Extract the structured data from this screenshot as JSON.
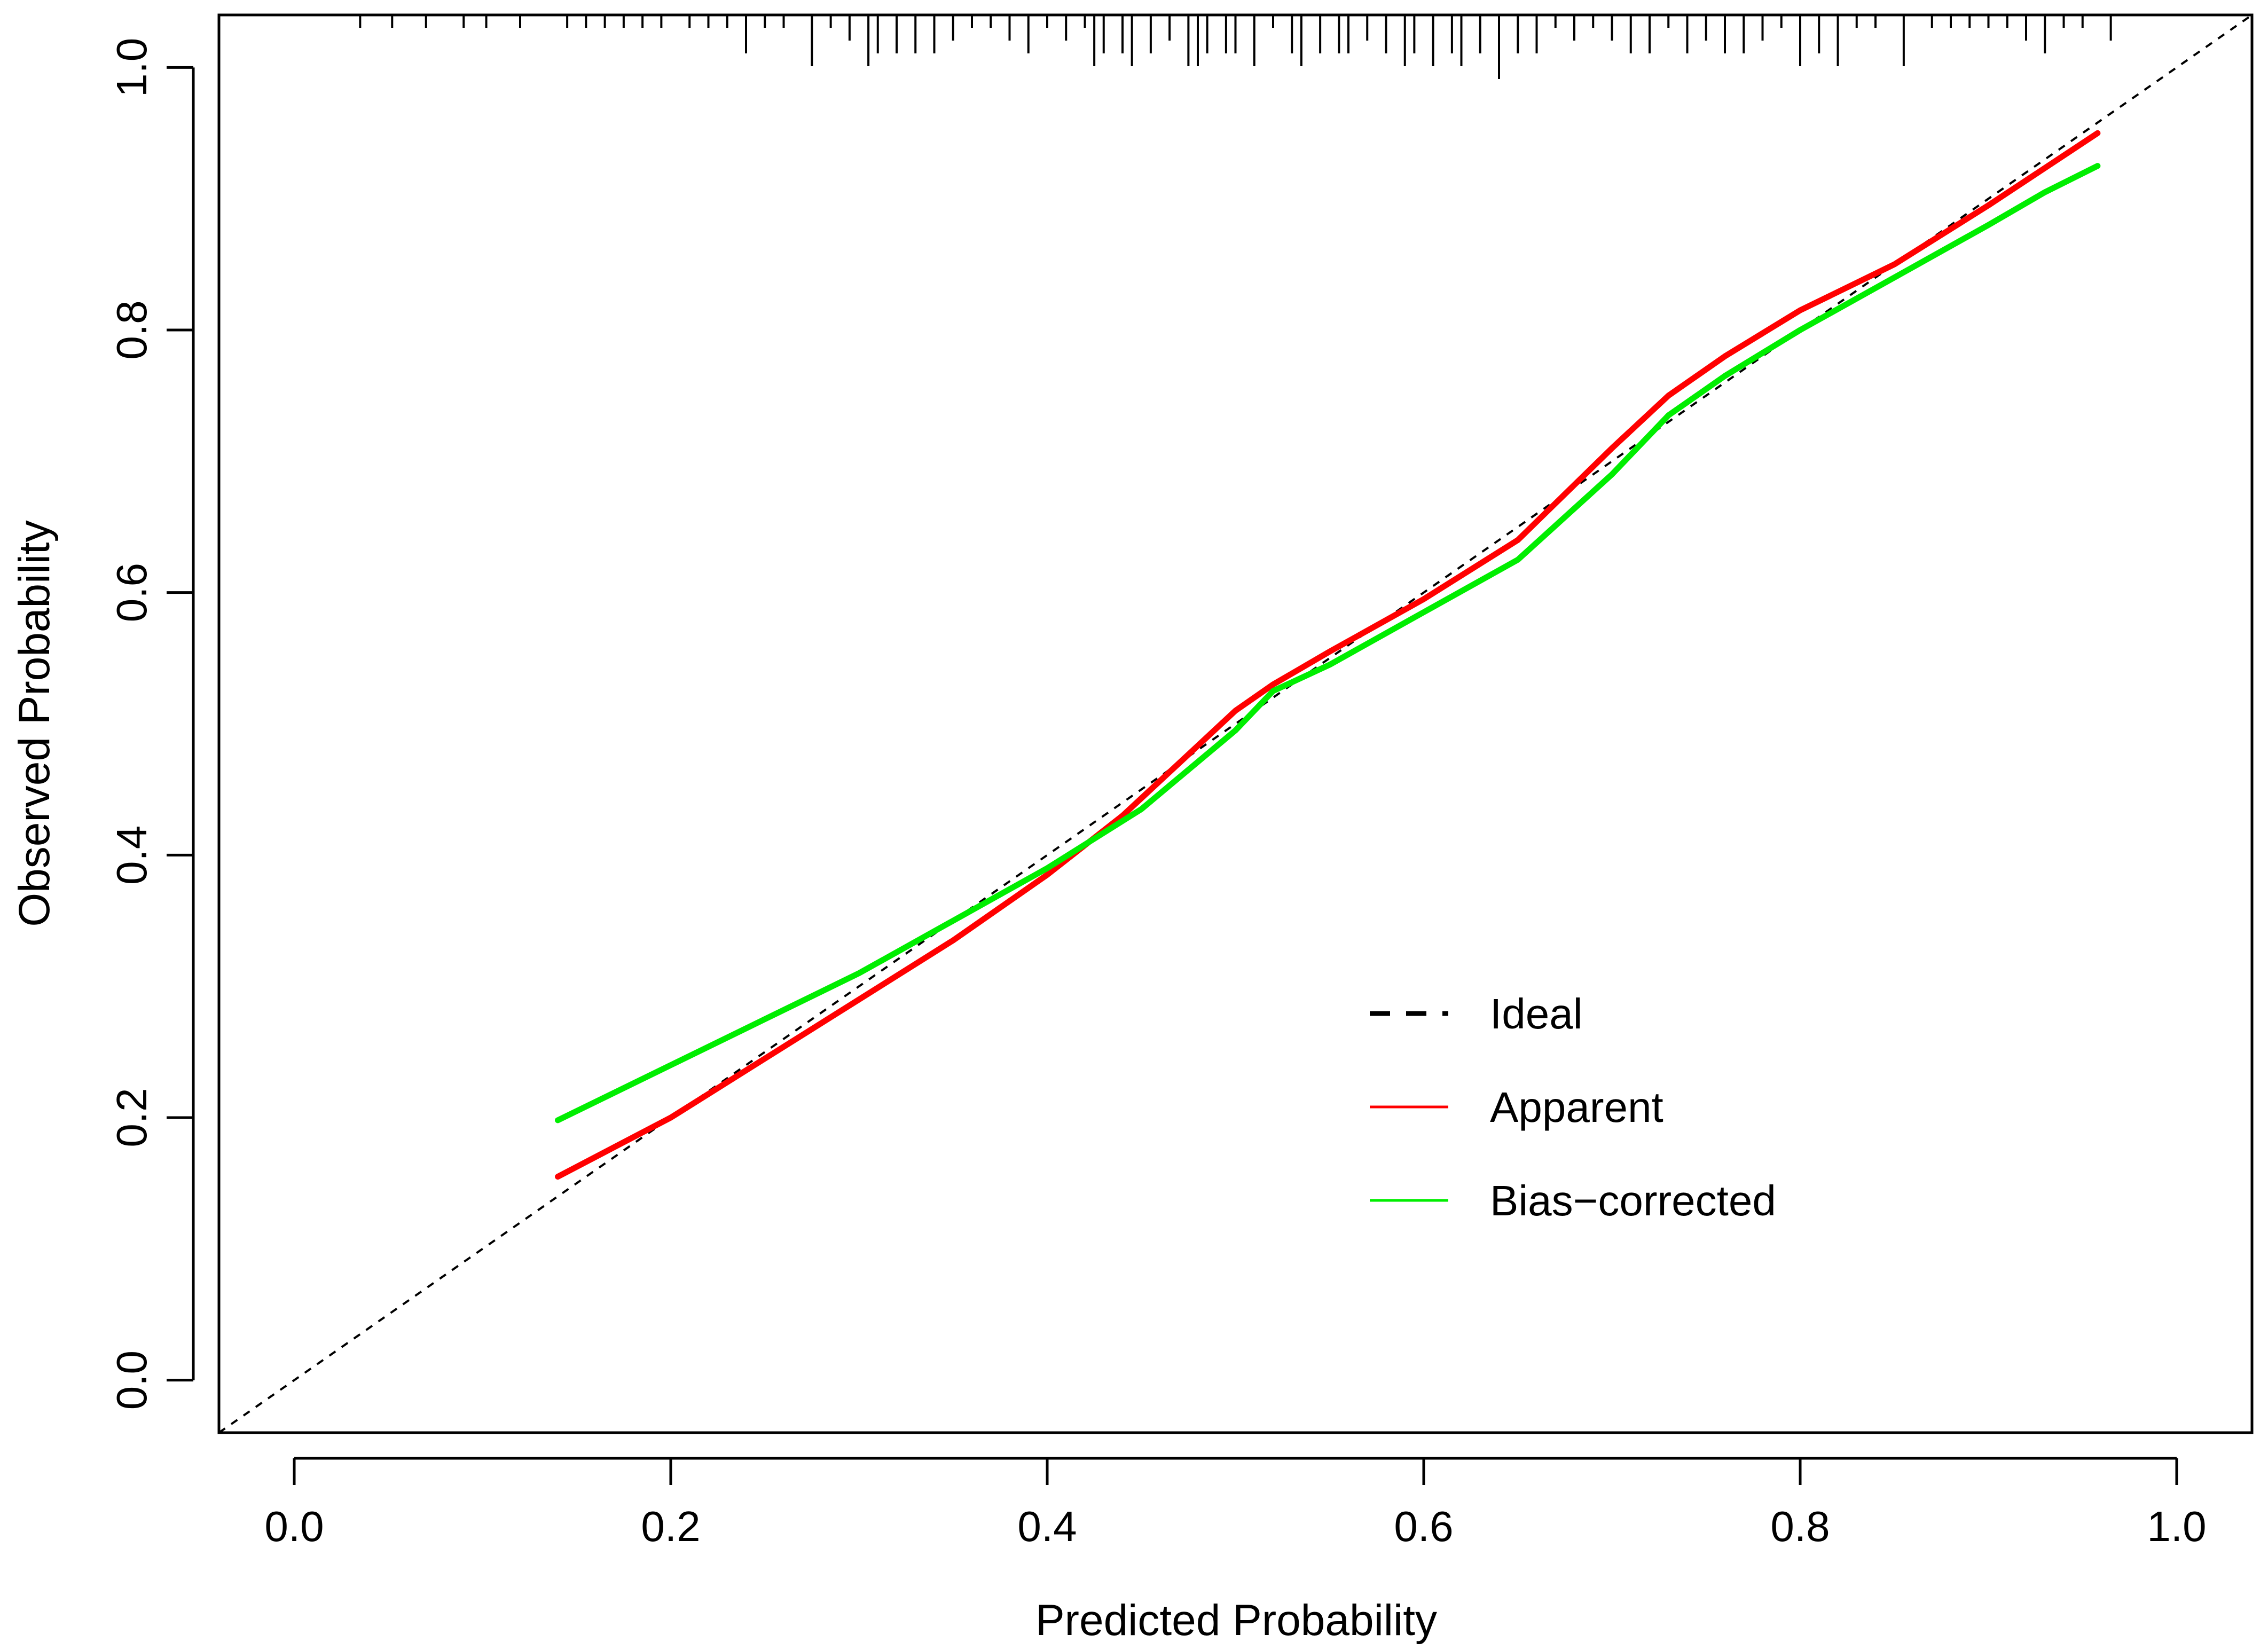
{
  "chart_data": {
    "type": "line",
    "xlabel": "Predicted Probability",
    "ylabel": "Observed Probability",
    "xlim": [
      -0.04,
      1.04
    ],
    "ylim": [
      -0.04,
      1.04
    ],
    "x_ticks": [
      0.0,
      0.2,
      0.4,
      0.6,
      0.8,
      1.0
    ],
    "y_ticks": [
      0.0,
      0.2,
      0.4,
      0.6,
      0.8,
      1.0
    ],
    "x_tick_labels": [
      "0.0",
      "0.2",
      "0.4",
      "0.6",
      "0.8",
      "1.0"
    ],
    "y_tick_labels": [
      "0.0",
      "0.2",
      "0.4",
      "0.6",
      "0.8",
      "1.0"
    ],
    "grid": false,
    "legend_placement": "bottom-right",
    "legend": [
      {
        "label": "Ideal",
        "series": "ideal"
      },
      {
        "label": "Apparent",
        "series": "apparent"
      },
      {
        "label": "Bias−corrected",
        "series": "bias_corrected"
      }
    ],
    "series": [
      {
        "key": "ideal",
        "name": "Ideal",
        "color": "#000000",
        "style": "dashed",
        "x": [
          -0.04,
          1.04
        ],
        "y": [
          -0.04,
          1.04
        ]
      },
      {
        "key": "apparent",
        "name": "Apparent",
        "color": "#ff0000",
        "style": "solid",
        "x": [
          0.14,
          0.2,
          0.25,
          0.3,
          0.35,
          0.4,
          0.44,
          0.47,
          0.5,
          0.52,
          0.55,
          0.6,
          0.65,
          0.7,
          0.73,
          0.76,
          0.8,
          0.85,
          0.9,
          0.958
        ],
        "y": [
          0.155,
          0.2,
          0.245,
          0.29,
          0.335,
          0.385,
          0.43,
          0.47,
          0.51,
          0.53,
          0.555,
          0.595,
          0.64,
          0.71,
          0.75,
          0.78,
          0.815,
          0.85,
          0.895,
          0.95
        ]
      },
      {
        "key": "bias_corrected",
        "name": "Bias−corrected",
        "color": "#00ee00",
        "style": "solid",
        "x": [
          0.14,
          0.2,
          0.25,
          0.3,
          0.35,
          0.4,
          0.45,
          0.5,
          0.52,
          0.55,
          0.6,
          0.65,
          0.7,
          0.73,
          0.76,
          0.8,
          0.85,
          0.9,
          0.93,
          0.958
        ],
        "y": [
          0.198,
          0.24,
          0.275,
          0.31,
          0.35,
          0.39,
          0.435,
          0.495,
          0.525,
          0.545,
          0.585,
          0.625,
          0.69,
          0.735,
          0.765,
          0.8,
          0.84,
          0.88,
          0.905,
          0.925
        ]
      }
    ],
    "rug": {
      "x": [
        0.035,
        0.052,
        0.07,
        0.09,
        0.102,
        0.12,
        0.145,
        0.155,
        0.165,
        0.175,
        0.185,
        0.195,
        0.21,
        0.22,
        0.23,
        0.24,
        0.25,
        0.26,
        0.275,
        0.285,
        0.295,
        0.305,
        0.31,
        0.32,
        0.33,
        0.34,
        0.35,
        0.36,
        0.37,
        0.38,
        0.39,
        0.4,
        0.41,
        0.42,
        0.425,
        0.43,
        0.44,
        0.445,
        0.455,
        0.465,
        0.475,
        0.48,
        0.485,
        0.495,
        0.5,
        0.51,
        0.52,
        0.53,
        0.535,
        0.545,
        0.555,
        0.56,
        0.57,
        0.58,
        0.59,
        0.595,
        0.605,
        0.615,
        0.62,
        0.63,
        0.64,
        0.65,
        0.66,
        0.67,
        0.68,
        0.69,
        0.7,
        0.71,
        0.72,
        0.73,
        0.74,
        0.75,
        0.76,
        0.77,
        0.78,
        0.79,
        0.8,
        0.81,
        0.82,
        0.83,
        0.84,
        0.855,
        0.87,
        0.88,
        0.89,
        0.9,
        0.91,
        0.92,
        0.93,
        0.94,
        0.95,
        0.965
      ],
      "len": [
        1,
        1,
        1,
        1,
        1,
        1,
        1,
        1,
        1,
        1,
        1,
        1,
        1,
        1,
        1,
        3,
        1,
        1,
        4,
        1,
        2,
        4,
        3,
        3,
        3,
        3,
        2,
        1,
        1,
        2,
        3,
        1,
        2,
        1,
        4,
        3,
        3,
        4,
        3,
        2,
        4,
        4,
        3,
        3,
        3,
        4,
        1,
        3,
        4,
        3,
        3,
        3,
        2,
        3,
        4,
        3,
        4,
        3,
        4,
        3,
        5,
        3,
        3,
        1,
        2,
        1,
        2,
        3,
        3,
        1,
        3,
        2,
        3,
        3,
        2,
        1,
        4,
        3,
        4,
        1,
        1,
        4,
        1,
        1,
        1,
        1,
        1,
        2,
        3,
        1,
        1,
        2
      ]
    }
  }
}
